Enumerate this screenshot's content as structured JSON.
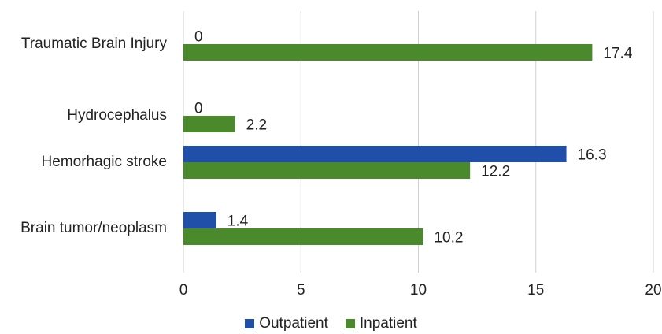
{
  "chart_data": {
    "type": "bar",
    "orientation": "horizontal",
    "categories": [
      "Traumatic Brain Injury",
      "Hydrocephalus",
      "Hemorhagic stroke",
      "Brain tumor/neoplasm"
    ],
    "series": [
      {
        "name": "Outpatient",
        "color": "#1f4fa8",
        "values": [
          0,
          0,
          16.3,
          1.4
        ],
        "labels": [
          "0",
          "0",
          "16.3",
          "1.4"
        ]
      },
      {
        "name": "Inpatient",
        "color": "#4a8a2c",
        "values": [
          17.4,
          2.2,
          12.2,
          10.2
        ],
        "labels": [
          "17.4",
          "2.2",
          "12.2",
          "10.2"
        ]
      }
    ],
    "xlim": [
      0,
      20
    ],
    "xticks": [
      "0",
      "5",
      "10",
      "15",
      "20"
    ],
    "grid": true,
    "legend_position": "bottom"
  }
}
